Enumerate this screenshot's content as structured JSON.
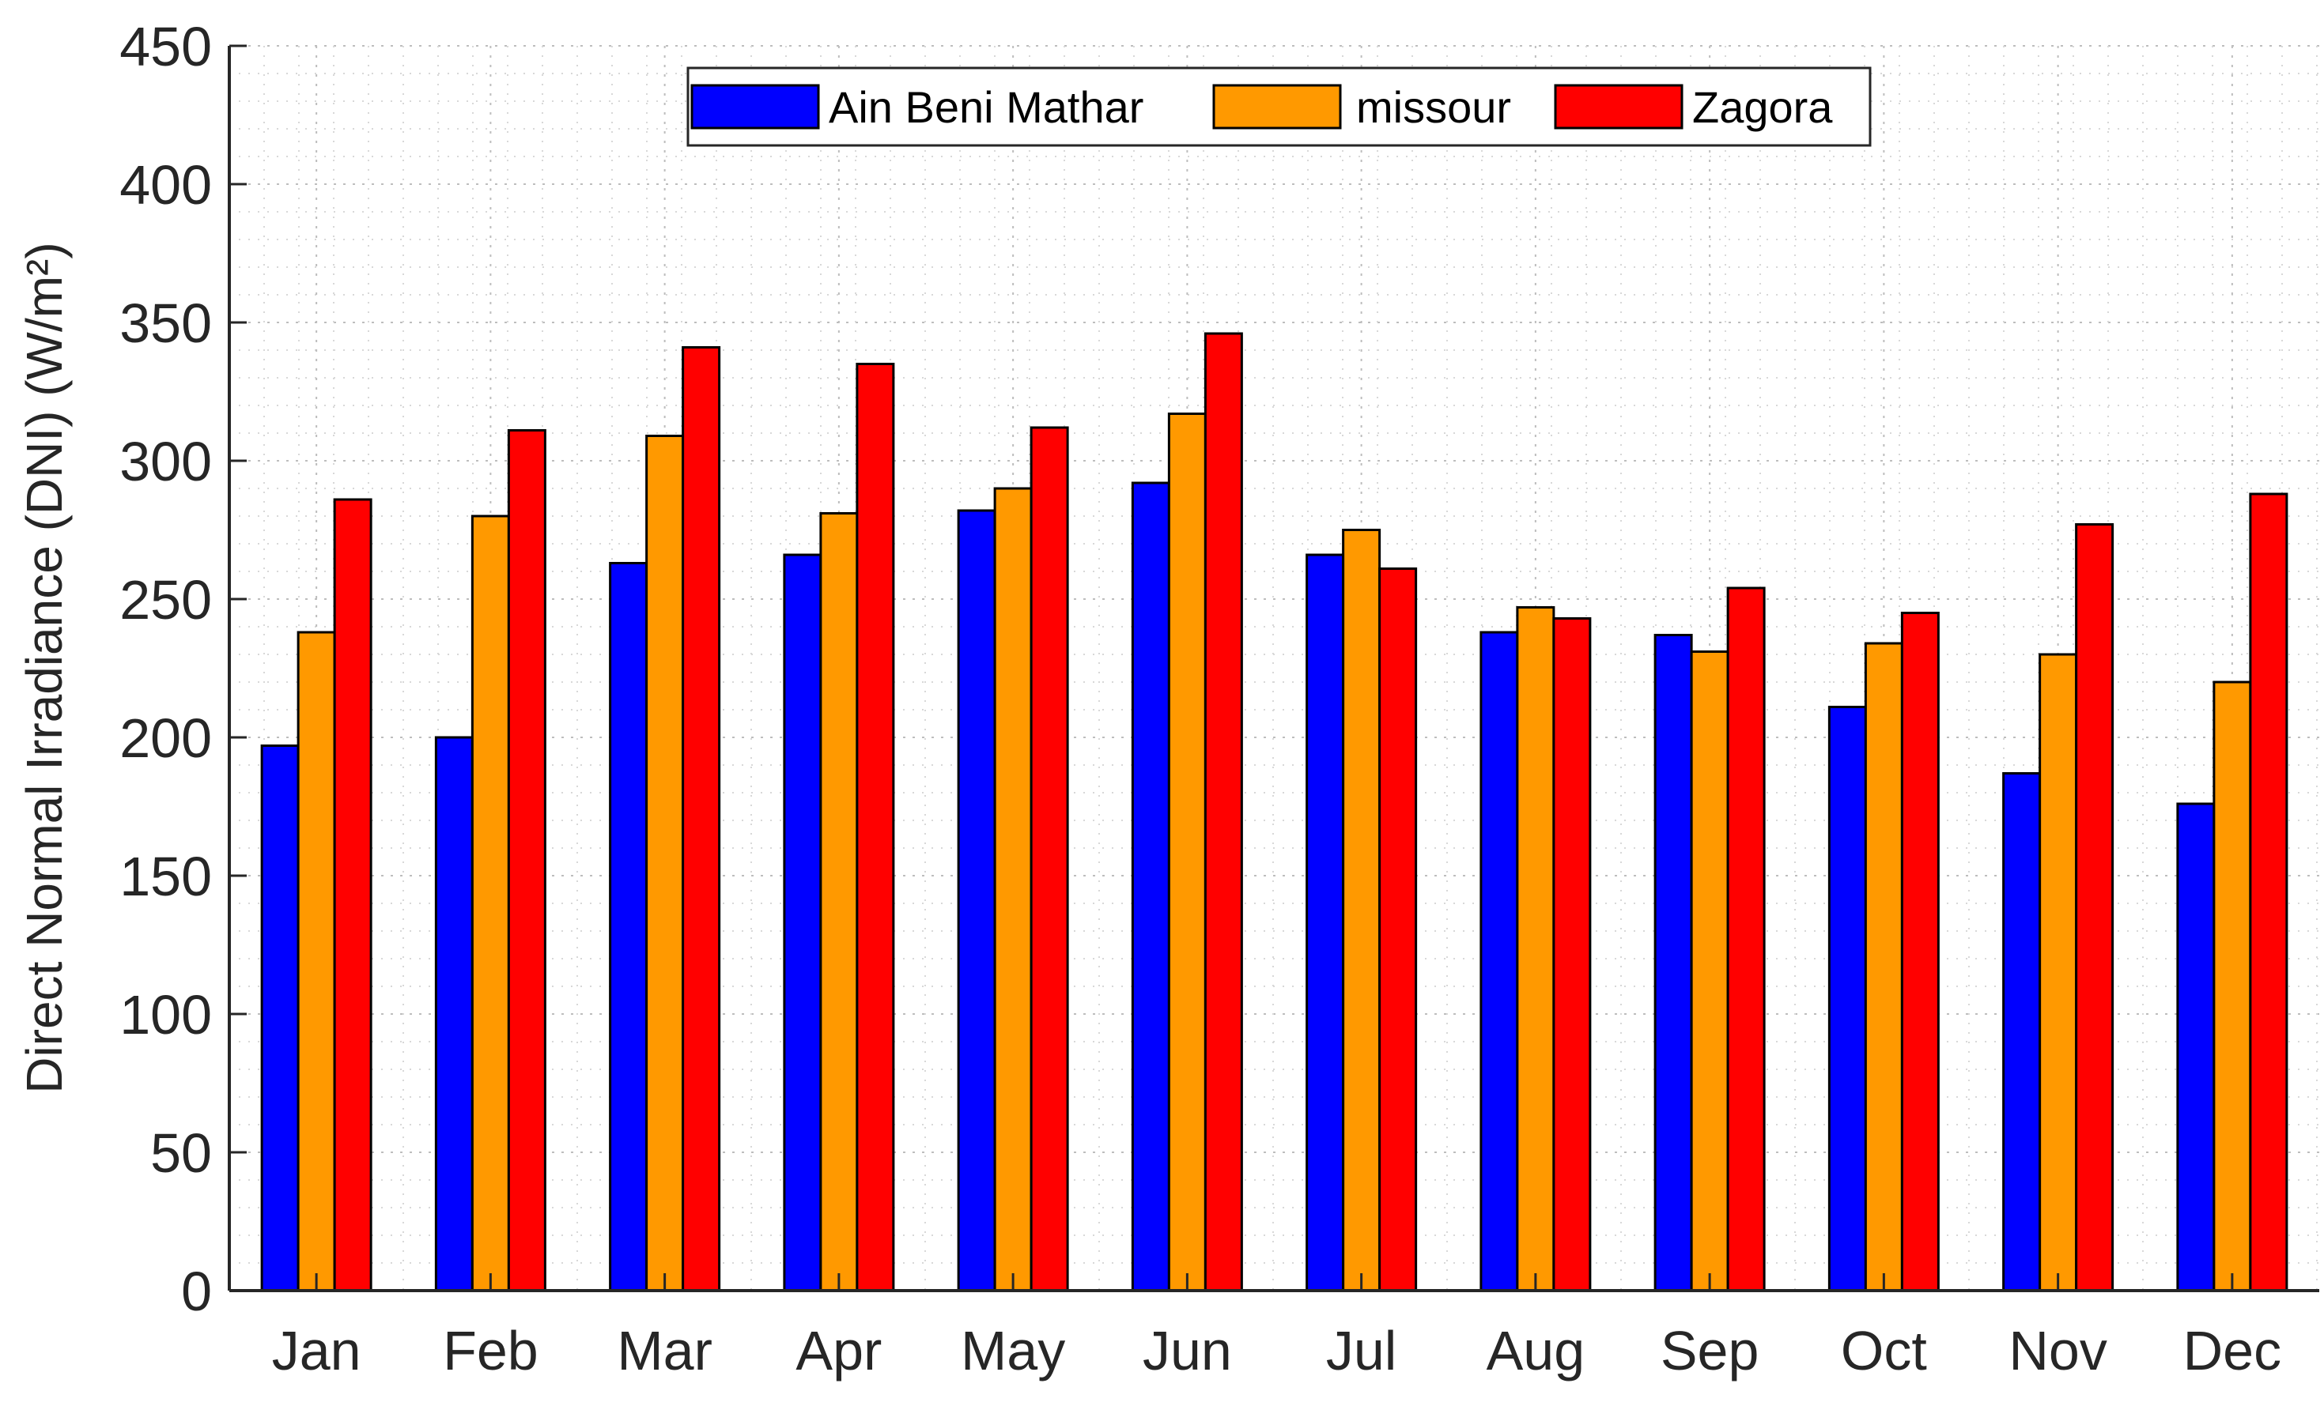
{
  "chart_data": {
    "type": "bar",
    "title": "",
    "xlabel": "",
    "ylabel": "Direct Normal Irradiance (DNI) (W/m²)",
    "ylim": [
      0,
      450
    ],
    "yticks": [
      0,
      50,
      100,
      150,
      200,
      250,
      300,
      350,
      400,
      450
    ],
    "grid": true,
    "legend_position": "top-center",
    "categories": [
      "Jan",
      "Feb",
      "Mar",
      "Apr",
      "May",
      "Jun",
      "Jul",
      "Aug",
      "Sep",
      "Oct",
      "Nov",
      "Dec"
    ],
    "series": [
      {
        "name": "Ain Beni Mathar",
        "color": "#0000FF",
        "values": [
          197,
          200,
          263,
          266,
          282,
          292,
          266,
          238,
          237,
          211,
          187,
          176
        ]
      },
      {
        "name": "missour",
        "color": "#FF9900",
        "values": [
          238,
          280,
          309,
          281,
          290,
          317,
          275,
          247,
          231,
          234,
          230,
          220
        ]
      },
      {
        "name": "Zagora",
        "color": "#FF0000",
        "values": [
          286,
          311,
          341,
          335,
          312,
          346,
          261,
          243,
          254,
          245,
          277,
          288
        ]
      }
    ]
  }
}
